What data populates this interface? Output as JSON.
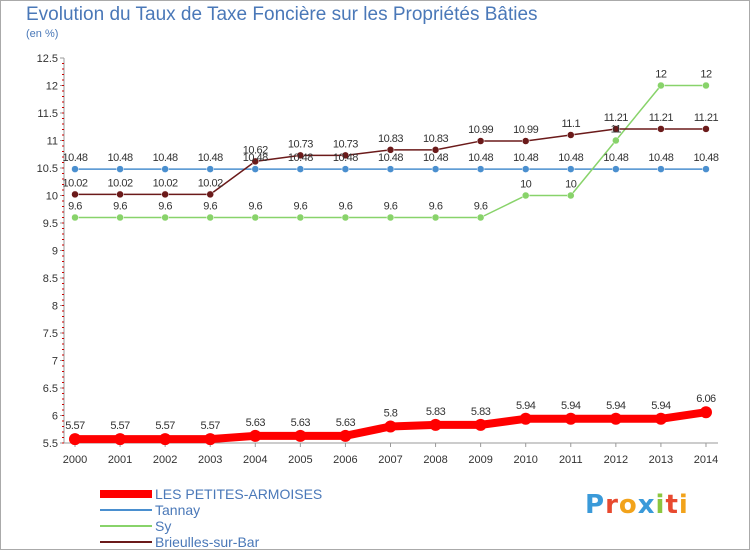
{
  "chart_data": {
    "type": "line",
    "title": "Evolution du Taux de Taxe Foncière sur les Propriétés Bâties",
    "subtitle": "(en %)",
    "x": [
      "2000",
      "2001",
      "2002",
      "2003",
      "2004",
      "2005",
      "2006",
      "2007",
      "2008",
      "2009",
      "2010",
      "2011",
      "2012",
      "2013",
      "2014"
    ],
    "ylim": [
      5.5,
      12.5
    ],
    "yticks": [
      "5.5",
      "6",
      "6.5",
      "7",
      "7.5",
      "8",
      "8.5",
      "9",
      "9.5",
      "10",
      "10.5",
      "11",
      "11.5",
      "12",
      "12.5"
    ],
    "grid": false,
    "legend_position": "bottom-left",
    "series": [
      {
        "name": "LES PETITES-ARMOISES",
        "color": "#ff0000",
        "values": [
          5.57,
          5.57,
          5.57,
          5.57,
          5.63,
          5.63,
          5.63,
          5.8,
          5.83,
          5.83,
          5.94,
          5.94,
          5.94,
          5.94,
          6.06
        ],
        "labels": [
          "5.57",
          "5.57",
          "5.57",
          "5.57",
          "5.63",
          "5.63",
          "5.63",
          "5.8",
          "5.83",
          "5.83",
          "5.94",
          "5.94",
          "5.94",
          "5.94",
          "6.06"
        ]
      },
      {
        "name": "Tannay",
        "color": "#4a8fcf",
        "values": [
          10.48,
          10.48,
          10.48,
          10.48,
          10.48,
          10.48,
          10.48,
          10.48,
          10.48,
          10.48,
          10.48,
          10.48,
          10.48,
          10.48,
          10.48
        ],
        "labels": [
          "10.48",
          "10.48",
          "10.48",
          "10.48",
          "10.48",
          "10.48",
          "10.48",
          "10.48",
          "10.48",
          "10.48",
          "10.48",
          "10.48",
          "10.48",
          "10.48",
          "10.48"
        ]
      },
      {
        "name": "Sy",
        "color": "#88d36a",
        "values": [
          9.6,
          9.6,
          9.6,
          9.6,
          9.6,
          9.6,
          9.6,
          9.6,
          9.6,
          9.6,
          10,
          10,
          11,
          12,
          12
        ],
        "labels": [
          "9.6",
          "9.6",
          "9.6",
          "9.6",
          "9.6",
          "9.6",
          "9.6",
          "9.6",
          "9.6",
          "9.6",
          "10",
          "10",
          "11",
          "12",
          "12"
        ]
      },
      {
        "name": "Brieulles-sur-Bar",
        "color": "#6b1a1a",
        "values": [
          10.02,
          10.02,
          10.02,
          10.02,
          10.62,
          10.73,
          10.73,
          10.83,
          10.83,
          10.99,
          10.99,
          11.1,
          11.21,
          11.21,
          11.21
        ],
        "labels": [
          "10.02",
          "10.02",
          "10.02",
          "10.02",
          "10.62",
          "10.73",
          "10.73",
          "10.83",
          "10.83",
          "10.99",
          "10.99",
          "11.1",
          "11.21",
          "11.21",
          "11.21"
        ]
      }
    ]
  },
  "logo": {
    "letters": [
      "P",
      "r",
      "o",
      "x",
      "i",
      "t",
      "i"
    ],
    "colors": [
      "#3a9ad9",
      "#e8492f",
      "#f2a31b",
      "#3a9ad9",
      "#8cc63f",
      "#e8492f",
      "#f2a31b"
    ]
  }
}
